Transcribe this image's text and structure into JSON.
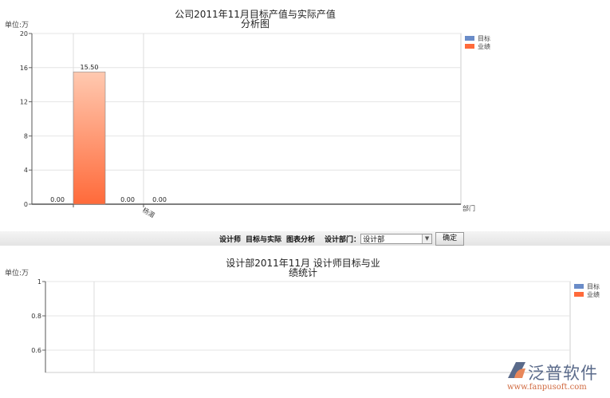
{
  "chart_data": [
    {
      "type": "bar",
      "title": "公司2011年11月目标产值与实际产值",
      "title_line2": "分析图",
      "unit_label": "单位:万",
      "xlabel": "部门",
      "categories": [
        "",
        "杨湄"
      ],
      "series": [
        {
          "name": "目标",
          "color": "#6a8cc8",
          "values": [
            0,
            0
          ]
        },
        {
          "name": "业绩",
          "color": "#ff6a3a",
          "values": [
            15.5,
            0
          ]
        }
      ],
      "data_labels": [
        "0.00",
        "15.50",
        "0.00",
        "0.00"
      ],
      "yticks": [
        "0",
        "4",
        "8",
        "12",
        "16",
        "20"
      ],
      "ylim": [
        0,
        20
      ],
      "grid": true,
      "legend": "top-right"
    },
    {
      "type": "bar",
      "title": "设计部2011年11月 设计师目标与业",
      "title_line2": "绩统计",
      "unit_label": "单位:万",
      "categories": [],
      "series": [
        {
          "name": "目标",
          "color": "#6a8cc8",
          "values": []
        },
        {
          "name": "业绩",
          "color": "#ff6a3a",
          "values": []
        }
      ],
      "yticks": [
        "0.6",
        "0.8",
        "1"
      ],
      "ylim": [
        0,
        1
      ],
      "grid": true,
      "legend": "top-right"
    }
  ],
  "toolbar": {
    "items": [
      "设计师",
      "目标与实际",
      "图表分析"
    ],
    "dept_label": "设计部门：",
    "dept_value": "设计部",
    "confirm": "确定"
  },
  "logo": {
    "name": "泛普软件",
    "url": "www.fanpusoft.com"
  }
}
